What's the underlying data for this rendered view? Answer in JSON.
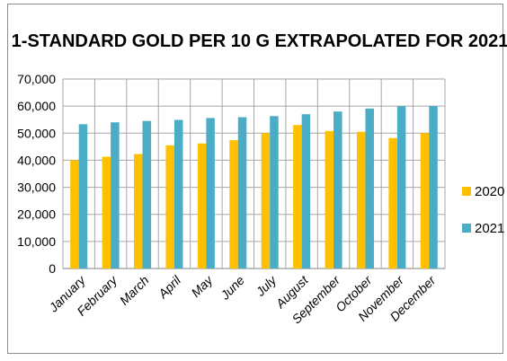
{
  "chart_data": {
    "type": "bar",
    "title": "1-STANDARD GOLD PER 10 G EXTRAPOLATED FOR 2021",
    "xlabel": "",
    "ylabel": "",
    "categories": [
      "January",
      "February",
      "March",
      "April",
      "May",
      "June",
      "July",
      "August",
      "September",
      "October",
      "November",
      "December"
    ],
    "series": [
      {
        "name": "2020",
        "color": "#FFC000",
        "values": [
          40000,
          41300,
          42300,
          45500,
          46200,
          47400,
          50000,
          53000,
          50800,
          50500,
          48200,
          50000
        ]
      },
      {
        "name": "2021",
        "color": "#4BACC6",
        "values": [
          53300,
          54000,
          54500,
          54900,
          55600,
          55900,
          56300,
          57000,
          58000,
          59100,
          59900,
          60000
        ]
      }
    ],
    "ylim": [
      0,
      70000
    ],
    "yticks": [
      0,
      10000,
      20000,
      30000,
      40000,
      50000,
      60000,
      70000
    ],
    "ytick_labels": [
      "0",
      "10,000",
      "20,000",
      "30,000",
      "40,000",
      "50,000",
      "60,000",
      "70,000"
    ],
    "grid": true,
    "legend_position": "right"
  }
}
